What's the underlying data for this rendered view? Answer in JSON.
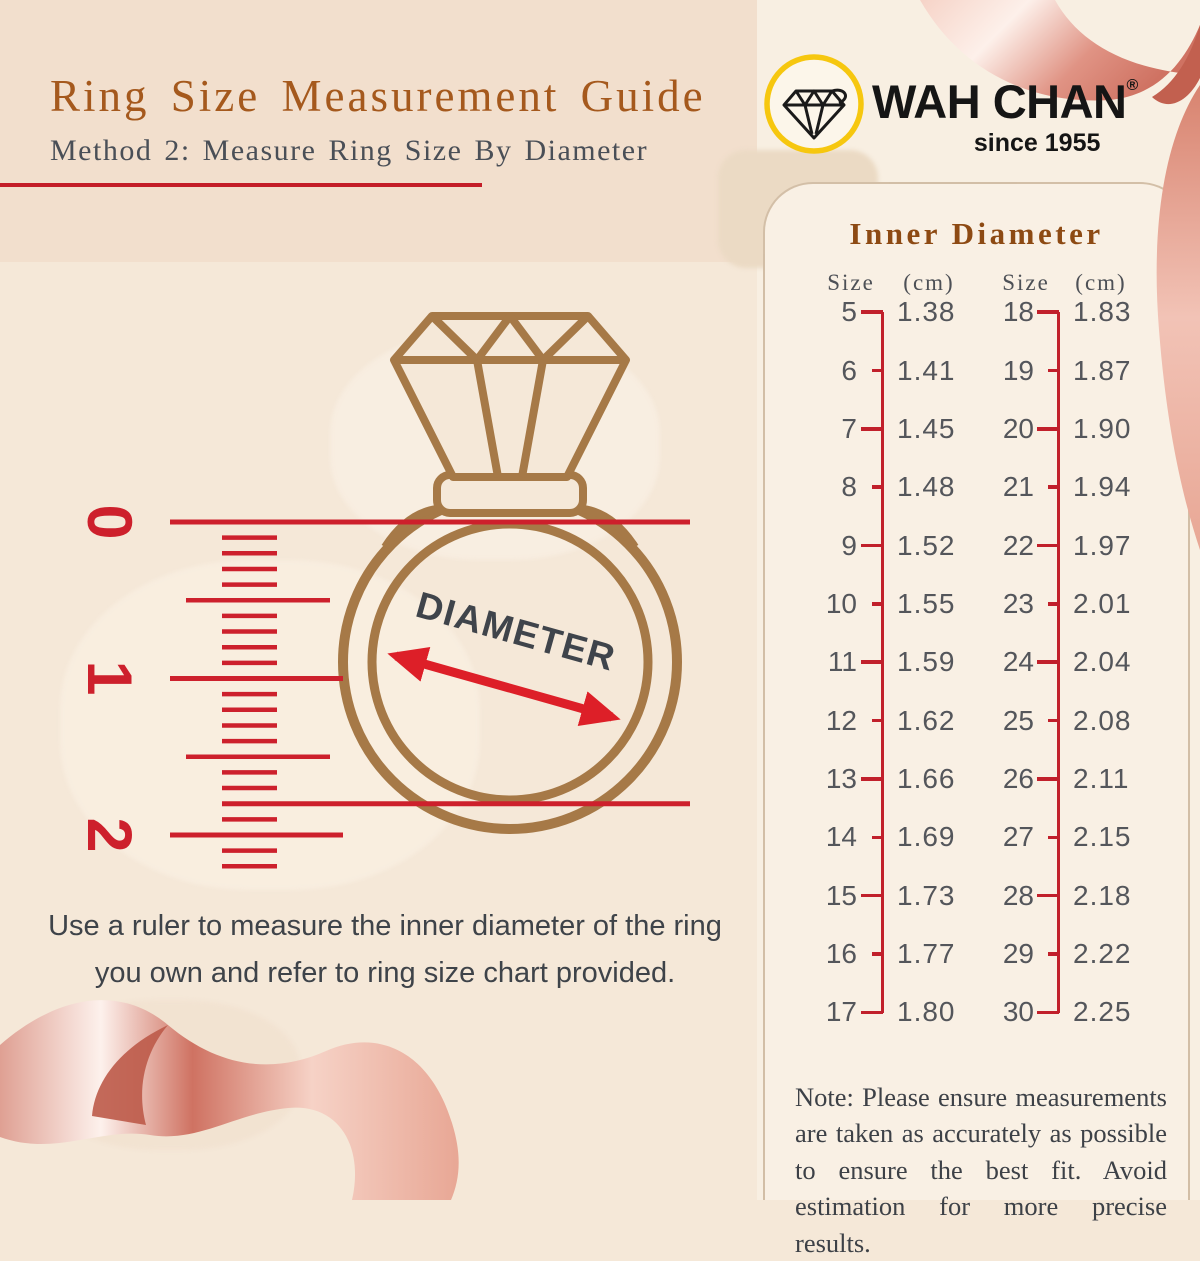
{
  "header": {
    "title": "Ring Size Measurement Guide",
    "subtitle": "Method 2: Measure Ring Size By Diameter"
  },
  "logo": {
    "brand": "WAH CHAN",
    "registered_mark": "®",
    "tagline": "since 1955",
    "icon": "diamond-icon",
    "circle_color": "#f6c70f"
  },
  "diagram": {
    "diameter_label": "DIAMETER",
    "ruler_marks": [
      "0",
      "1",
      "2"
    ],
    "instruction": "Use a ruler to measure the inner diameter of the ring you own and refer to ring size chart provided."
  },
  "panel": {
    "title": "Inner Diameter",
    "columns": [
      {
        "size_header": "Size",
        "cm_header": "(cm)",
        "rows": [
          {
            "size": "5",
            "cm": "1.38"
          },
          {
            "size": "6",
            "cm": "1.41"
          },
          {
            "size": "7",
            "cm": "1.45"
          },
          {
            "size": "8",
            "cm": "1.48"
          },
          {
            "size": "9",
            "cm": "1.52"
          },
          {
            "size": "10",
            "cm": "1.55"
          },
          {
            "size": "11",
            "cm": "1.59"
          },
          {
            "size": "12",
            "cm": "1.62"
          },
          {
            "size": "13",
            "cm": "1.66"
          },
          {
            "size": "14",
            "cm": "1.69"
          },
          {
            "size": "15",
            "cm": "1.73"
          },
          {
            "size": "16",
            "cm": "1.77"
          },
          {
            "size": "17",
            "cm": "1.80"
          }
        ]
      },
      {
        "size_header": "Size",
        "cm_header": "(cm)",
        "rows": [
          {
            "size": "18",
            "cm": "1.83"
          },
          {
            "size": "19",
            "cm": "1.87"
          },
          {
            "size": "20",
            "cm": "1.90"
          },
          {
            "size": "21",
            "cm": "1.94"
          },
          {
            "size": "22",
            "cm": "1.97"
          },
          {
            "size": "23",
            "cm": "2.01"
          },
          {
            "size": "24",
            "cm": "2.04"
          },
          {
            "size": "25",
            "cm": "2.08"
          },
          {
            "size": "26",
            "cm": "2.11"
          },
          {
            "size": "27",
            "cm": "2.15"
          },
          {
            "size": "28",
            "cm": "2.18"
          },
          {
            "size": "29",
            "cm": "2.22"
          },
          {
            "size": "30",
            "cm": "2.25"
          }
        ]
      }
    ],
    "note": "Note: Please ensure measurements are taken as accurately as possible to ensure the best fit. Avoid estimation for more precise results."
  },
  "colors": {
    "accent_red": "#c41e28",
    "ruler_red": "#cd202c",
    "arrow_red": "#dd1f28",
    "ring_brown": "#a67947",
    "title_brown": "#a5591d",
    "panel_title_brown": "#8d4a13",
    "text_gray": "#4a4f57",
    "logo_yellow": "#f6c70f",
    "ribbon_pink": "#d07a6a"
  }
}
